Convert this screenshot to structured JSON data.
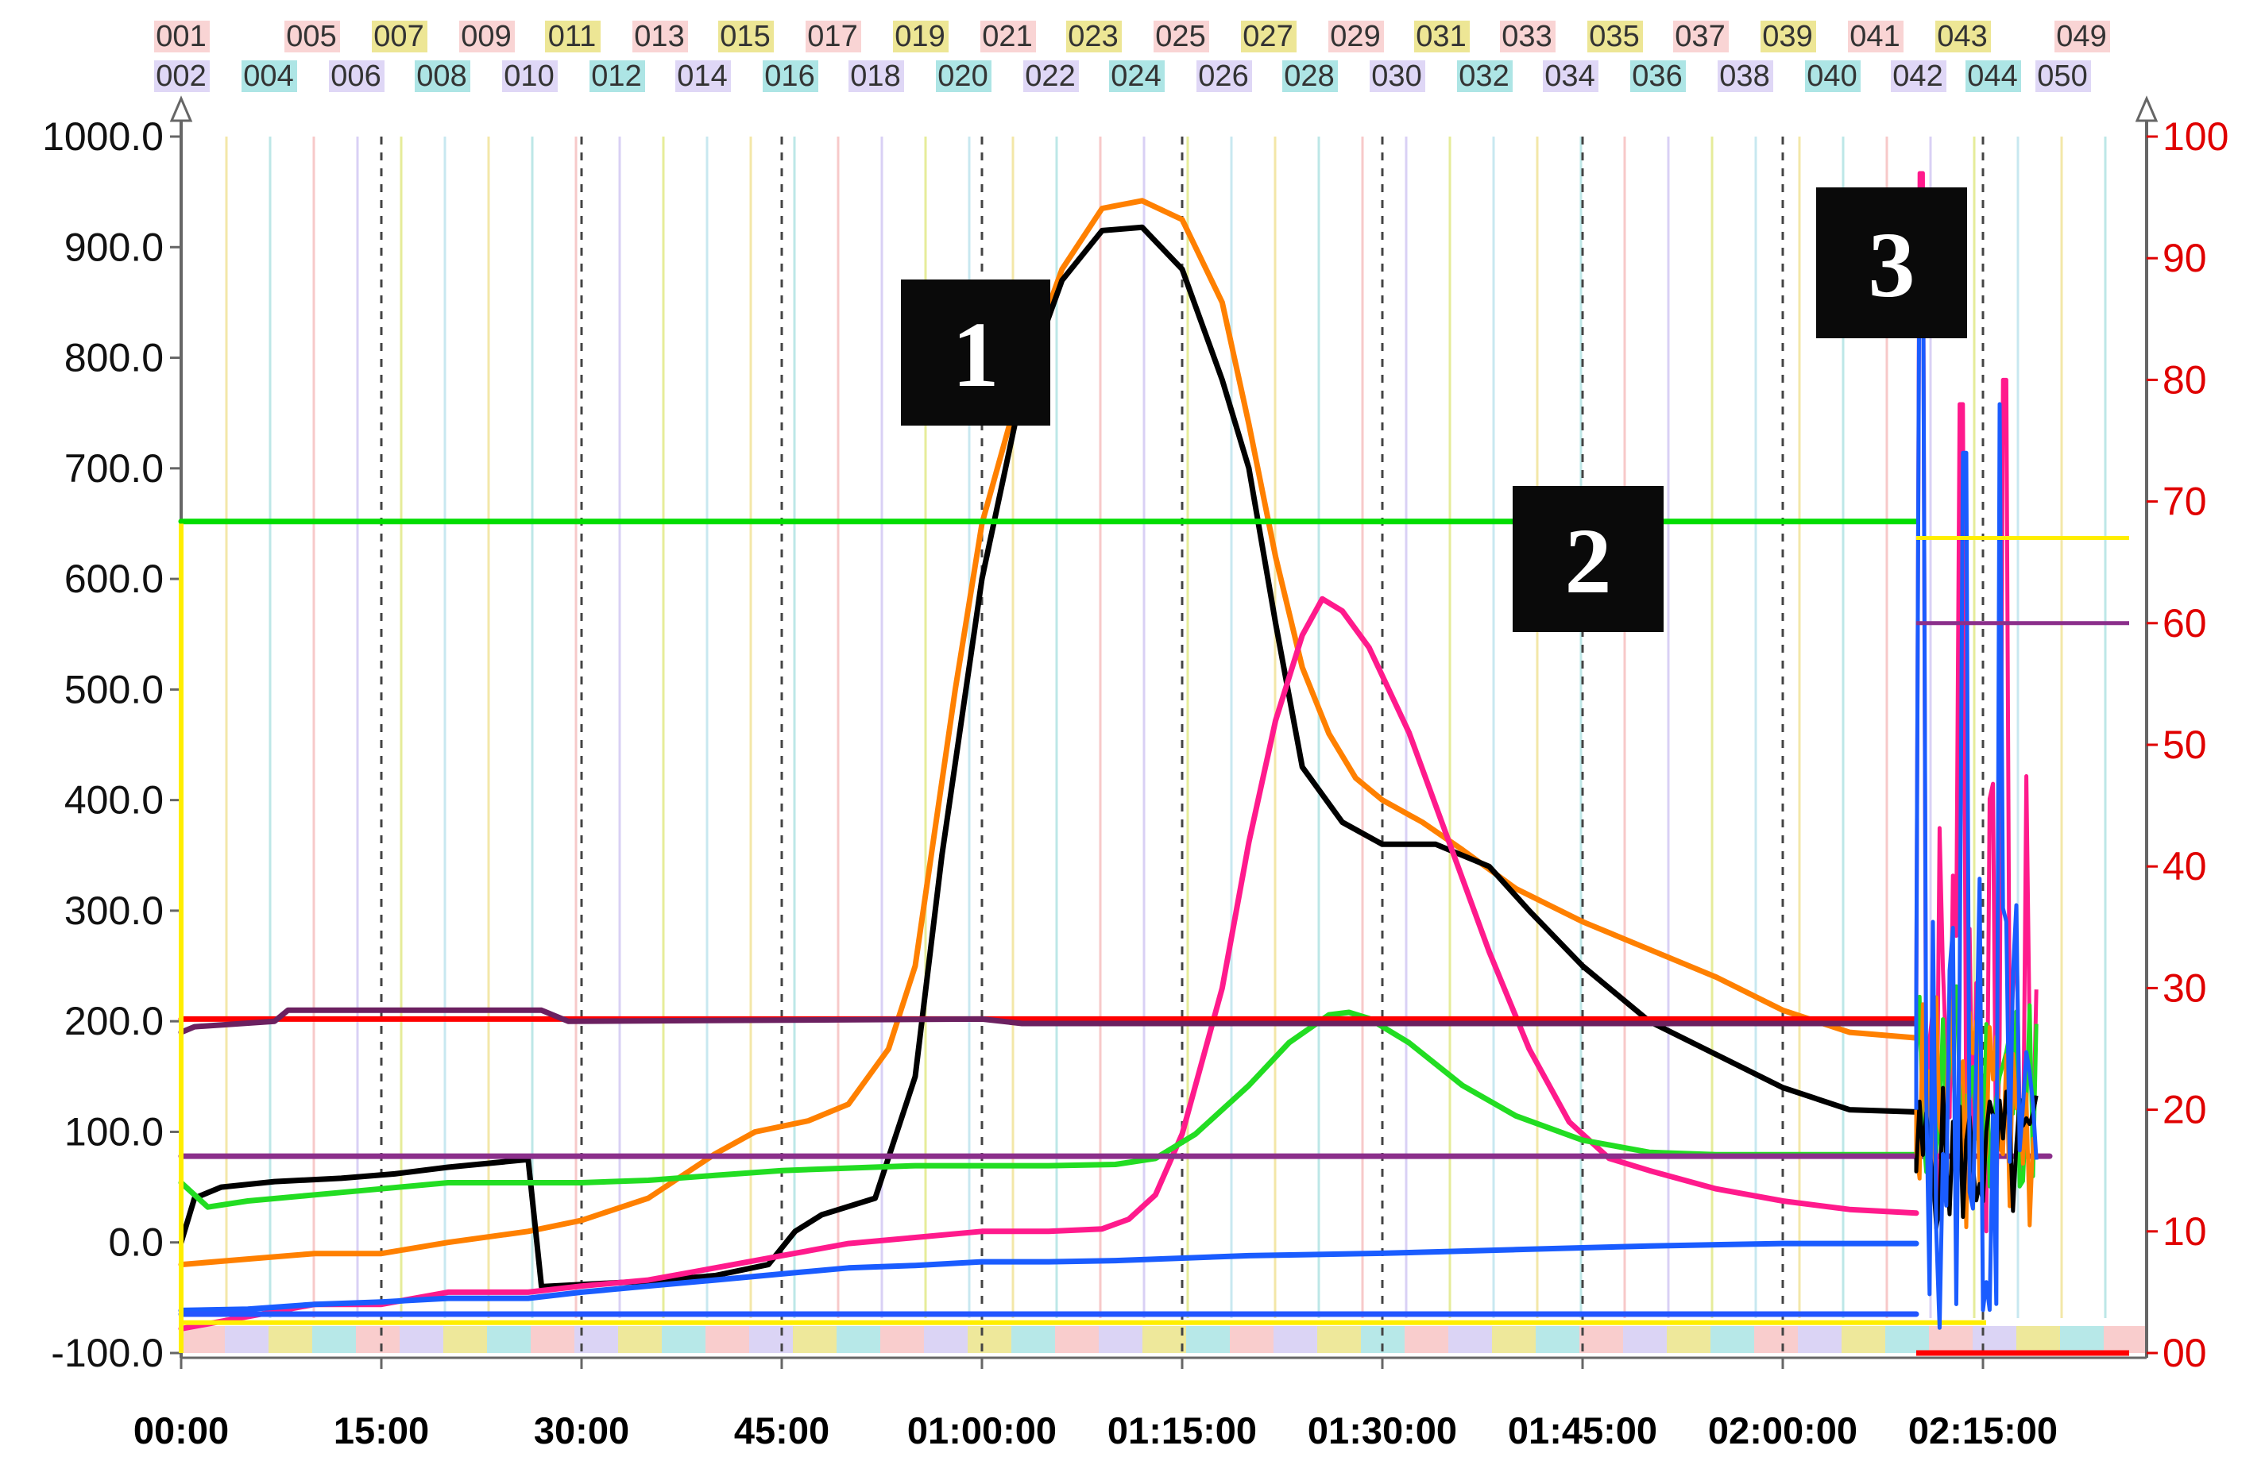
{
  "chart_data": {
    "type": "line",
    "x_unit": "hh:mm:ss elapsed",
    "x_ticks": [
      "00:00",
      "15:00",
      "30:00",
      "45:00",
      "01:00:00",
      "01:15:00",
      "01:30:00",
      "01:45:00",
      "02:00:00",
      "02:15:00"
    ],
    "xlim_minutes": [
      0,
      140
    ],
    "y_left": {
      "ticks": [
        "1000.0",
        "900.0",
        "800.0",
        "700.0",
        "600.0",
        "500.0",
        "400.0",
        "300.0",
        "200.0",
        "100.0",
        "0.0",
        "-100.0"
      ],
      "ylim": [
        -100,
        1000
      ]
    },
    "y_right": {
      "ticks": [
        "100",
        "90",
        "80",
        "70",
        "60",
        "50",
        "40",
        "30",
        "20",
        "10",
        "00"
      ],
      "ylim": [
        0,
        100
      ],
      "color": "#e00000"
    },
    "channel_markers_top": [
      "001",
      "005",
      "007",
      "009",
      "011",
      "013",
      "015",
      "017",
      "019",
      "021",
      "023",
      "025",
      "027",
      "029",
      "031",
      "033",
      "035",
      "037",
      "039",
      "041",
      "043",
      "049"
    ],
    "channel_markers_bottom": [
      "002",
      "004",
      "006",
      "008",
      "010",
      "012",
      "014",
      "016",
      "018",
      "020",
      "022",
      "024",
      "026",
      "028",
      "030",
      "032",
      "034",
      "036",
      "038",
      "040",
      "042",
      "044",
      "050"
    ],
    "annotations": [
      "1",
      "2",
      "3"
    ],
    "series": [
      {
        "color": "#ff8000",
        "axis": "left",
        "points": [
          [
            0,
            -20
          ],
          [
            5,
            -15
          ],
          [
            10,
            -10
          ],
          [
            15,
            -10
          ],
          [
            20,
            0
          ],
          [
            26,
            10
          ],
          [
            30,
            20
          ],
          [
            35,
            40
          ],
          [
            40,
            80
          ],
          [
            43,
            100
          ],
          [
            47,
            110
          ],
          [
            50,
            125
          ],
          [
            53,
            175
          ],
          [
            55,
            250
          ],
          [
            58,
            500
          ],
          [
            60,
            650
          ],
          [
            63,
            780
          ],
          [
            66,
            880
          ],
          [
            69,
            935
          ],
          [
            72,
            942
          ],
          [
            75,
            925
          ],
          [
            78,
            850
          ],
          [
            80,
            740
          ],
          [
            82,
            620
          ],
          [
            84,
            520
          ],
          [
            86,
            460
          ],
          [
            88,
            420
          ],
          [
            90,
            400
          ],
          [
            93,
            380
          ],
          [
            96,
            355
          ],
          [
            100,
            320
          ],
          [
            105,
            290
          ],
          [
            110,
            265
          ],
          [
            115,
            240
          ],
          [
            120,
            210
          ],
          [
            125,
            190
          ],
          [
            130,
            185
          ]
        ]
      },
      {
        "color": "#000000",
        "axis": "left",
        "points": [
          [
            0,
            0
          ],
          [
            1,
            40
          ],
          [
            3,
            50
          ],
          [
            7,
            55
          ],
          [
            12,
            58
          ],
          [
            16,
            62
          ],
          [
            20,
            68
          ],
          [
            26,
            75
          ],
          [
            27,
            -40
          ],
          [
            30,
            -38
          ],
          [
            35,
            -35
          ],
          [
            40,
            -30
          ],
          [
            44,
            -20
          ],
          [
            46,
            10
          ],
          [
            48,
            25
          ],
          [
            52,
            40
          ],
          [
            55,
            150
          ],
          [
            57,
            350
          ],
          [
            60,
            600
          ],
          [
            63,
            770
          ],
          [
            66,
            870
          ],
          [
            69,
            915
          ],
          [
            72,
            918
          ],
          [
            75,
            880
          ],
          [
            78,
            780
          ],
          [
            80,
            700
          ],
          [
            82,
            560
          ],
          [
            84,
            430
          ],
          [
            87,
            380
          ],
          [
            90,
            360
          ],
          [
            94,
            360
          ],
          [
            98,
            340
          ],
          [
            101,
            300
          ],
          [
            105,
            250
          ],
          [
            110,
            200
          ],
          [
            115,
            170
          ],
          [
            120,
            140
          ],
          [
            125,
            120
          ],
          [
            130,
            118
          ]
        ]
      },
      {
        "color": "#ff1a8c",
        "axis": "right",
        "points": [
          [
            0,
            2
          ],
          [
            5,
            3
          ],
          [
            10,
            4
          ],
          [
            15,
            4
          ],
          [
            20,
            5
          ],
          [
            26,
            5
          ],
          [
            30,
            5.5
          ],
          [
            35,
            6
          ],
          [
            40,
            7
          ],
          [
            45,
            8
          ],
          [
            50,
            9
          ],
          [
            55,
            9.5
          ],
          [
            60,
            10
          ],
          [
            65,
            10
          ],
          [
            69,
            10.2
          ],
          [
            71,
            11
          ],
          [
            73,
            13
          ],
          [
            75,
            18
          ],
          [
            78,
            30
          ],
          [
            80,
            42
          ],
          [
            82,
            52
          ],
          [
            84,
            59
          ],
          [
            85.5,
            62
          ],
          [
            87,
            61
          ],
          [
            89,
            58
          ],
          [
            92,
            51
          ],
          [
            95,
            42
          ],
          [
            98,
            33
          ],
          [
            101,
            25
          ],
          [
            104,
            19
          ],
          [
            107,
            16
          ],
          [
            110,
            15
          ],
          [
            115,
            13.5
          ],
          [
            120,
            12.5
          ],
          [
            125,
            11.8
          ],
          [
            130,
            11.5
          ]
        ]
      },
      {
        "color": "#22dd22",
        "axis": "right",
        "points": [
          [
            0,
            14
          ],
          [
            2,
            12
          ],
          [
            5,
            12.5
          ],
          [
            10,
            13
          ],
          [
            15,
            13.5
          ],
          [
            20,
            14
          ],
          [
            26,
            14
          ],
          [
            30,
            14
          ],
          [
            35,
            14.2
          ],
          [
            40,
            14.6
          ],
          [
            45,
            15
          ],
          [
            50,
            15.2
          ],
          [
            55,
            15.4
          ],
          [
            60,
            15.4
          ],
          [
            65,
            15.4
          ],
          [
            70,
            15.5
          ],
          [
            73,
            16
          ],
          [
            76,
            18
          ],
          [
            80,
            22
          ],
          [
            83,
            25.5
          ],
          [
            86,
            27.8
          ],
          [
            87.5,
            28
          ],
          [
            89,
            27.5
          ],
          [
            92,
            25.5
          ],
          [
            96,
            22
          ],
          [
            100,
            19.5
          ],
          [
            105,
            17.5
          ],
          [
            110,
            16.5
          ],
          [
            115,
            16.3
          ],
          [
            120,
            16.3
          ],
          [
            130,
            16.3
          ]
        ]
      },
      {
        "color": "#1a5cff",
        "axis": "right",
        "points": [
          [
            0,
            3.5
          ],
          [
            5,
            3.6
          ],
          [
            10,
            4
          ],
          [
            15,
            4.2
          ],
          [
            20,
            4.5
          ],
          [
            26,
            4.5
          ],
          [
            30,
            5
          ],
          [
            35,
            5.5
          ],
          [
            40,
            6
          ],
          [
            45,
            6.5
          ],
          [
            50,
            7
          ],
          [
            55,
            7.2
          ],
          [
            60,
            7.5
          ],
          [
            65,
            7.5
          ],
          [
            70,
            7.6
          ],
          [
            80,
            8
          ],
          [
            90,
            8.2
          ],
          [
            100,
            8.5
          ],
          [
            110,
            8.8
          ],
          [
            120,
            9
          ],
          [
            130,
            9
          ]
        ]
      },
      {
        "color": "#2255ff",
        "axis": "right",
        "points": [
          [
            0,
            3.2
          ],
          [
            130,
            3.2
          ]
        ]
      },
      {
        "color": "#00dd00",
        "axis": "left",
        "points": [
          [
            0,
            652
          ],
          [
            130,
            652
          ]
        ]
      },
      {
        "color": "#ff0000",
        "axis": "left",
        "points": [
          [
            0,
            202
          ],
          [
            130,
            202
          ]
        ]
      },
      {
        "color": "#8b2f8b",
        "axis": "left",
        "points": [
          [
            0,
            78
          ],
          [
            140,
            78
          ]
        ]
      },
      {
        "color": "#6b2060",
        "axis": "left",
        "points": [
          [
            0,
            190
          ],
          [
            1,
            195
          ],
          [
            7,
            200
          ],
          [
            8,
            210
          ],
          [
            27,
            210
          ],
          [
            29,
            200
          ],
          [
            60,
            202
          ],
          [
            63,
            198
          ],
          [
            130,
            198
          ]
        ]
      }
    ],
    "grid": true
  },
  "annotation_boxes": [
    {
      "label": "1"
    },
    {
      "label": "2"
    },
    {
      "label": "3"
    }
  ]
}
